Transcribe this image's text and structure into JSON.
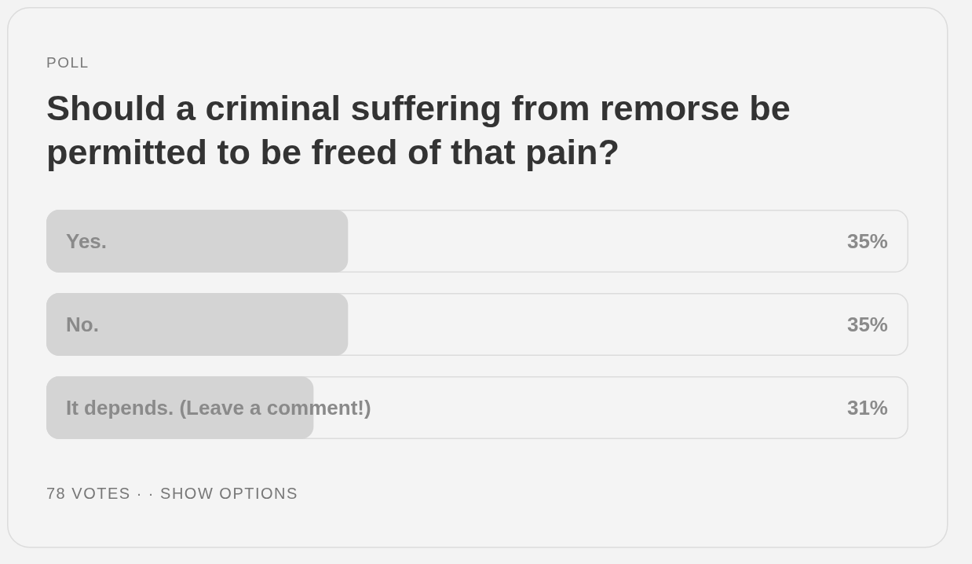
{
  "chart_data": {
    "type": "bar",
    "orientation": "horizontal",
    "subtitle": "POLL",
    "title": "Should a criminal suffering from remorse be permitted to be freed of that pain?",
    "categories": [
      "Yes.",
      "No.",
      "It depends. (Leave a comment!)"
    ],
    "values": [
      35,
      35,
      31
    ],
    "value_labels": [
      "35%",
      "35%",
      "31%"
    ],
    "color": "#d4d4d4",
    "xlim": [
      0,
      100
    ],
    "tick_labels": "y",
    "annotations": [
      "78 VOTES · · SHOW OPTIONS"
    ]
  }
}
